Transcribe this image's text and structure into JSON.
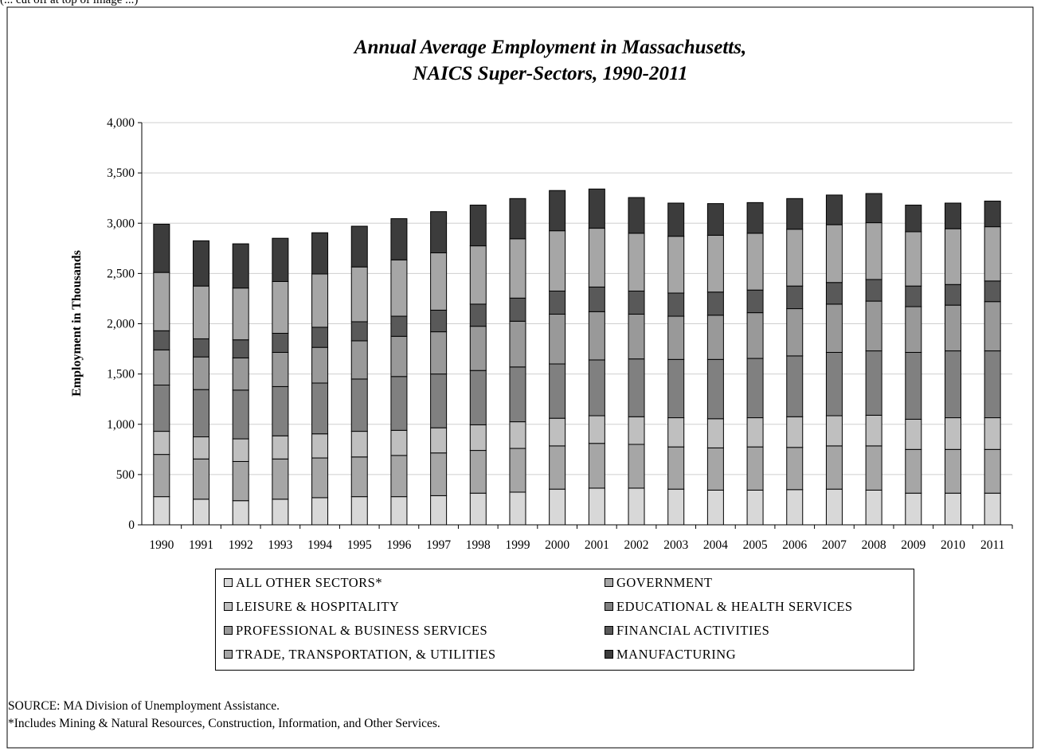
{
  "header_cut": "(... cut off at top of image ...)",
  "chart_data": {
    "type": "bar",
    "stacked": true,
    "title": "Annual Average Employment in Massachusetts,",
    "subtitle": "NAICS Super-Sectors, 1990-2011",
    "xlabel": "",
    "ylabel": "Employment  in Thousands",
    "ylim": [
      0,
      4000
    ],
    "yticks": [
      0,
      500,
      1000,
      1500,
      2000,
      2500,
      3000,
      3500,
      4000
    ],
    "ytick_labels": [
      "0",
      "500",
      "1,000",
      "1,500",
      "2,000",
      "2,500",
      "3,000",
      "3,500",
      "4,000"
    ],
    "grid": true,
    "legend_position": "bottom",
    "categories": [
      "1990",
      "1991",
      "1992",
      "1993",
      "1994",
      "1995",
      "1996",
      "1997",
      "1998",
      "1999",
      "2000",
      "2001",
      "2002",
      "2003",
      "2004",
      "2005",
      "2006",
      "2007",
      "2008",
      "2009",
      "2010",
      "2011"
    ],
    "series": [
      {
        "name": "ALL OTHER SECTORS*",
        "color": "#d8d8d8",
        "values": [
          280,
          255,
          240,
          255,
          270,
          280,
          280,
          290,
          315,
          325,
          355,
          365,
          365,
          355,
          345,
          345,
          350,
          355,
          345,
          315,
          315,
          315
        ]
      },
      {
        "name": "GOVERNMENT",
        "color": "#a6a6a6",
        "values": [
          420,
          400,
          390,
          400,
          395,
          395,
          410,
          425,
          425,
          435,
          430,
          445,
          435,
          420,
          420,
          430,
          420,
          430,
          440,
          435,
          435,
          435
        ]
      },
      {
        "name": "LEISURE & HOSPITALITY",
        "color": "#bfbfbf",
        "values": [
          230,
          220,
          225,
          230,
          240,
          255,
          250,
          250,
          255,
          265,
          275,
          275,
          275,
          290,
          290,
          290,
          305,
          300,
          305,
          300,
          315,
          315
        ]
      },
      {
        "name": "EDUCATIONAL & HEALTH SERVICES",
        "color": "#808080",
        "values": [
          460,
          470,
          485,
          490,
          505,
          520,
          535,
          535,
          540,
          545,
          540,
          555,
          575,
          580,
          590,
          590,
          605,
          630,
          640,
          665,
          665,
          665
        ]
      },
      {
        "name": "PROFESSIONAL & BUSINESS SERVICES",
        "color": "#999999",
        "values": [
          350,
          325,
          320,
          340,
          355,
          380,
          400,
          420,
          440,
          455,
          495,
          480,
          445,
          430,
          440,
          455,
          470,
          480,
          495,
          455,
          455,
          490
        ]
      },
      {
        "name": "FINANCIAL ACTIVITIES",
        "color": "#595959",
        "values": [
          190,
          180,
          180,
          190,
          200,
          190,
          200,
          215,
          220,
          230,
          230,
          245,
          230,
          230,
          230,
          225,
          225,
          215,
          215,
          205,
          205,
          205
        ]
      },
      {
        "name": "TRADE, TRANSPORTATION, & UTILITIES",
        "color": "#a6a6a6",
        "values": [
          580,
          525,
          515,
          515,
          530,
          545,
          560,
          570,
          580,
          590,
          600,
          585,
          575,
          565,
          565,
          565,
          565,
          575,
          565,
          540,
          555,
          540
        ]
      },
      {
        "name": "MANUFACTURING",
        "color": "#3c3c3c",
        "values": [
          480,
          450,
          440,
          430,
          410,
          405,
          410,
          410,
          405,
          400,
          400,
          390,
          355,
          330,
          315,
          305,
          305,
          295,
          290,
          265,
          255,
          255
        ]
      }
    ]
  },
  "notes": {
    "source": "SOURCE:  MA Division of Unemployment Assistance.",
    "footnote": "*Includes Mining & Natural Resources, Construction, Information, and Other Services."
  }
}
